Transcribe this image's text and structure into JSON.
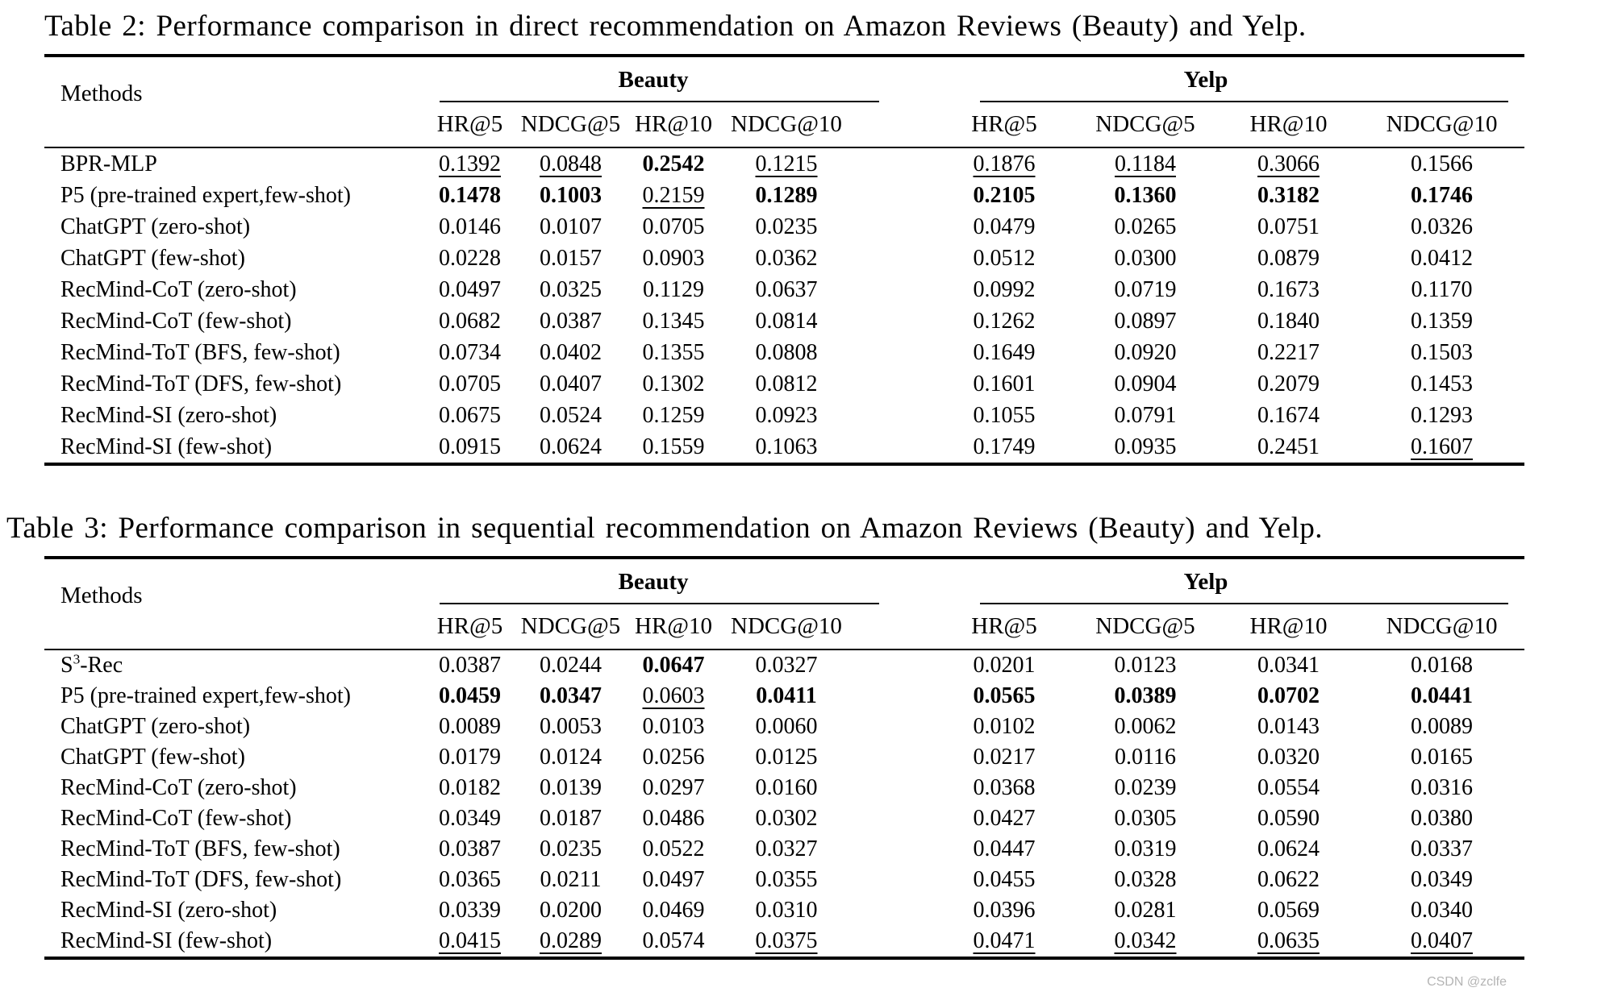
{
  "page": {
    "background_color": "#ffffff",
    "text_color": "#000000",
    "watermark": {
      "text": "CSDN @zclfe",
      "color": "#b4b4b4"
    }
  },
  "table2": {
    "caption": "Table 2: Performance comparison in direct recommendation on Amazon Reviews (Beauty) and Yelp.",
    "methods_header": "Methods",
    "groups": [
      {
        "label": "Beauty"
      },
      {
        "label": "Yelp"
      }
    ],
    "metrics": [
      "HR@5",
      "NDCG@5",
      "HR@10",
      "NDCG@10",
      "HR@5",
      "NDCG@5",
      "HR@10",
      "NDCG@10"
    ],
    "format_legend": "b = bold (best), u = underline (second best)",
    "rows": [
      {
        "method": "BPR-MLP",
        "values": [
          "0.1392",
          "0.0848",
          "0.2542",
          "0.1215",
          "0.1876",
          "0.1184",
          "0.3066",
          "0.1566"
        ],
        "formats": [
          "u",
          "u",
          "b",
          "u",
          "u",
          "u",
          "u",
          ""
        ]
      },
      {
        "method": "P5 (pre-trained expert,few-shot)",
        "values": [
          "0.1478",
          "0.1003",
          "0.2159",
          "0.1289",
          "0.2105",
          "0.1360",
          "0.3182",
          "0.1746"
        ],
        "formats": [
          "b",
          "b",
          "u",
          "b",
          "b",
          "b",
          "b",
          "b"
        ]
      },
      {
        "method": "ChatGPT (zero-shot)",
        "values": [
          "0.0146",
          "0.0107",
          "0.0705",
          "0.0235",
          "0.0479",
          "0.0265",
          "0.0751",
          "0.0326"
        ],
        "formats": [
          "",
          "",
          "",
          "",
          "",
          "",
          "",
          ""
        ]
      },
      {
        "method": "ChatGPT (few-shot)",
        "values": [
          "0.0228",
          "0.0157",
          "0.0903",
          "0.0362",
          "0.0512",
          "0.0300",
          "0.0879",
          "0.0412"
        ],
        "formats": [
          "",
          "",
          "",
          "",
          "",
          "",
          "",
          ""
        ]
      },
      {
        "method": "RecMind-CoT (zero-shot)",
        "values": [
          "0.0497",
          "0.0325",
          "0.1129",
          "0.0637",
          "0.0992",
          "0.0719",
          "0.1673",
          "0.1170"
        ],
        "formats": [
          "",
          "",
          "",
          "",
          "",
          "",
          "",
          ""
        ]
      },
      {
        "method": "RecMind-CoT (few-shot)",
        "values": [
          "0.0682",
          "0.0387",
          "0.1345",
          "0.0814",
          "0.1262",
          "0.0897",
          "0.1840",
          "0.1359"
        ],
        "formats": [
          "",
          "",
          "",
          "",
          "",
          "",
          "",
          ""
        ]
      },
      {
        "method": "RecMind-ToT (BFS, few-shot)",
        "values": [
          "0.0734",
          "0.0402",
          "0.1355",
          "0.0808",
          "0.1649",
          "0.0920",
          "0.2217",
          "0.1503"
        ],
        "formats": [
          "",
          "",
          "",
          "",
          "",
          "",
          "",
          ""
        ]
      },
      {
        "method": "RecMind-ToT (DFS, few-shot)",
        "values": [
          "0.0705",
          "0.0407",
          "0.1302",
          "0.0812",
          "0.1601",
          "0.0904",
          "0.2079",
          "0.1453"
        ],
        "formats": [
          "",
          "",
          "",
          "",
          "",
          "",
          "",
          ""
        ]
      },
      {
        "method": "RecMind-SI (zero-shot)",
        "values": [
          "0.0675",
          "0.0524",
          "0.1259",
          "0.0923",
          "0.1055",
          "0.0791",
          "0.1674",
          "0.1293"
        ],
        "formats": [
          "",
          "",
          "",
          "",
          "",
          "",
          "",
          ""
        ]
      },
      {
        "method": "RecMind-SI (few-shot)",
        "values": [
          "0.0915",
          "0.0624",
          "0.1559",
          "0.1063",
          "0.1749",
          "0.0935",
          "0.2451",
          "0.1607"
        ],
        "formats": [
          "",
          "",
          "",
          "",
          "",
          "",
          "",
          "u"
        ]
      }
    ]
  },
  "table3": {
    "caption": "Table 3: Performance comparison in sequential recommendation on Amazon Reviews (Beauty) and Yelp.",
    "methods_header": "Methods",
    "groups": [
      {
        "label": "Beauty"
      },
      {
        "label": "Yelp"
      }
    ],
    "metrics": [
      "HR@5",
      "NDCG@5",
      "HR@10",
      "NDCG@10",
      "HR@5",
      "NDCG@5",
      "HR@10",
      "NDCG@10"
    ],
    "rows": [
      {
        "method": "S^3-Rec",
        "values": [
          "0.0387",
          "0.0244",
          "0.0647",
          "0.0327",
          "0.0201",
          "0.0123",
          "0.0341",
          "0.0168"
        ],
        "formats": [
          "",
          "",
          "b",
          "",
          "",
          "",
          "",
          ""
        ]
      },
      {
        "method": "P5 (pre-trained expert,few-shot)",
        "values": [
          "0.0459",
          "0.0347",
          "0.0603",
          "0.0411",
          "0.0565",
          "0.0389",
          "0.0702",
          "0.0441"
        ],
        "formats": [
          "b",
          "b",
          "u",
          "b",
          "b",
          "b",
          "b",
          "b"
        ]
      },
      {
        "method": "ChatGPT (zero-shot)",
        "values": [
          "0.0089",
          "0.0053",
          "0.0103",
          "0.0060",
          "0.0102",
          "0.0062",
          "0.0143",
          "0.0089"
        ],
        "formats": [
          "",
          "",
          "",
          "",
          "",
          "",
          "",
          ""
        ]
      },
      {
        "method": "ChatGPT (few-shot)",
        "values": [
          "0.0179",
          "0.0124",
          "0.0256",
          "0.0125",
          "0.0217",
          "0.0116",
          "0.0320",
          "0.0165"
        ],
        "formats": [
          "",
          "",
          "",
          "",
          "",
          "",
          "",
          ""
        ]
      },
      {
        "method": "RecMind-CoT (zero-shot)",
        "values": [
          "0.0182",
          "0.0139",
          "0.0297",
          "0.0160",
          "0.0368",
          "0.0239",
          "0.0554",
          "0.0316"
        ],
        "formats": [
          "",
          "",
          "",
          "",
          "",
          "",
          "",
          ""
        ]
      },
      {
        "method": "RecMind-CoT (few-shot)",
        "values": [
          "0.0349",
          "0.0187",
          "0.0486",
          "0.0302",
          "0.0427",
          "0.0305",
          "0.0590",
          "0.0380"
        ],
        "formats": [
          "",
          "",
          "",
          "",
          "",
          "",
          "",
          ""
        ]
      },
      {
        "method": "RecMind-ToT (BFS, few-shot)",
        "values": [
          "0.0387",
          "0.0235",
          "0.0522",
          "0.0327",
          "0.0447",
          "0.0319",
          "0.0624",
          "0.0337"
        ],
        "formats": [
          "",
          "",
          "",
          "",
          "",
          "",
          "",
          ""
        ]
      },
      {
        "method": "RecMind-ToT (DFS, few-shot)",
        "values": [
          "0.0365",
          "0.0211",
          "0.0497",
          "0.0355",
          "0.0455",
          "0.0328",
          "0.0622",
          "0.0349"
        ],
        "formats": [
          "",
          "",
          "",
          "",
          "",
          "",
          "",
          ""
        ]
      },
      {
        "method": "RecMind-SI (zero-shot)",
        "values": [
          "0.0339",
          "0.0200",
          "0.0469",
          "0.0310",
          "0.0396",
          "0.0281",
          "0.0569",
          "0.0340"
        ],
        "formats": [
          "",
          "",
          "",
          "",
          "",
          "",
          "",
          ""
        ]
      },
      {
        "method": "RecMind-SI (few-shot)",
        "values": [
          "0.0415",
          "0.0289",
          "0.0574",
          "0.0375",
          "0.0471",
          "0.0342",
          "0.0635",
          "0.0407"
        ],
        "formats": [
          "u",
          "u",
          "",
          "u",
          "u",
          "u",
          "u",
          "u"
        ]
      }
    ]
  }
}
